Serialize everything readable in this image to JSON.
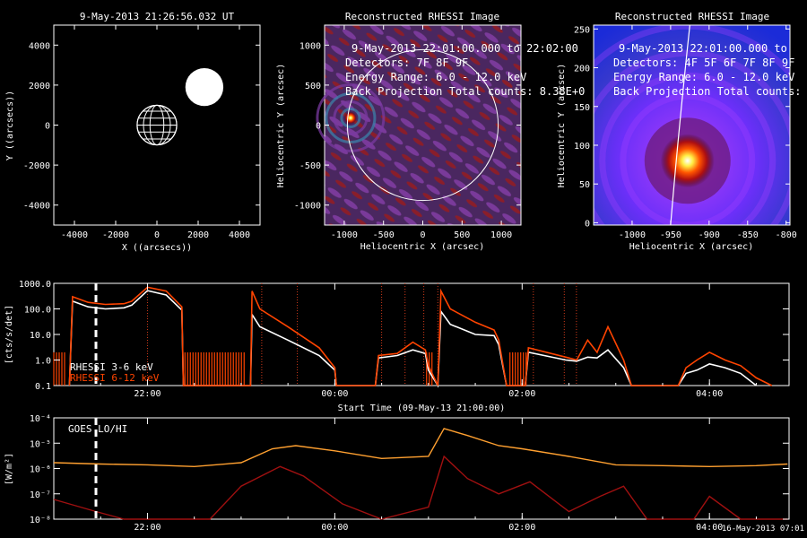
{
  "chart_data": [
    {
      "type": "scatter",
      "title": "9-May-2013 21:26:56.032 UT",
      "xlabel": "X ((arcsecs))",
      "ylabel": "Y ((arcsecs))",
      "xlim": [
        -5000,
        5000
      ],
      "ylim": [
        -5000,
        5000
      ],
      "xticks": [
        "-4000",
        "-2000",
        "0",
        "2000",
        "4000"
      ],
      "yticks": [
        "-4000",
        "-2000",
        "0",
        "2000",
        "4000"
      ],
      "objects": [
        {
          "kind": "earth-globe",
          "x": 0,
          "y": 0,
          "radius": 960
        },
        {
          "kind": "sun-disk",
          "x": 2300,
          "y": 1900,
          "radius": 920
        }
      ]
    },
    {
      "type": "heatmap",
      "title": "Reconstructed RHESSI Image",
      "xlabel": "Heliocentric X (arcsec)",
      "ylabel": "Heliocentric Y (arcsec)",
      "xlim": [
        -1250,
        1250
      ],
      "ylim": [
        -1250,
        1250
      ],
      "xticks": [
        "-1000",
        "-500",
        "0",
        "500",
        "1000"
      ],
      "yticks": [
        "-1000",
        "-500",
        "0",
        "500",
        "1000"
      ],
      "overlay": [
        "9-May-2013 22:01:00.000 to 22:02:00",
        "Detectors: 7F 8F 9F",
        "Energy Range: 6.0 - 12.0 keV",
        "Back Projection      Total counts: 8.38E+0"
      ],
      "source": {
        "x": -920,
        "y": 90
      },
      "solar_limb_radius": 960
    },
    {
      "type": "heatmap",
      "title": "Reconstructed RHESSI Image",
      "xlabel": "Heliocentric X (arcsec)",
      "ylabel": "Heliocentric Y (arcsec)",
      "xlim": [
        -1050,
        -795
      ],
      "ylim": [
        -3,
        255
      ],
      "xticks": [
        "-1000",
        "-950",
        "-900",
        "-850",
        "-800"
      ],
      "yticks": [
        "0",
        "50",
        "100",
        "150",
        "200",
        "250"
      ],
      "overlay": [
        "9-May-2013 22:01:00.000 to",
        "Detectors: 4F 5F 6F 7F 8F 9F",
        "Energy Range: 6.0 - 12.0 keV",
        "Back Projection     Total counts:"
      ],
      "source": {
        "x": -928,
        "y": 80
      }
    },
    {
      "type": "line",
      "title": "",
      "xlabel": "Start Time (09-May-13 21:00:00)",
      "ylabel": "[cts/s/det]",
      "log_y": true,
      "ylim": [
        0.1,
        1000
      ],
      "xlim_hours": [
        21.0,
        4.85
      ],
      "yticks": [
        "0.1",
        "1.0",
        "10.0",
        "100.0",
        "1000.0"
      ],
      "xticks": [
        "22:00",
        "00:00",
        "02:00",
        "04:00"
      ],
      "time_marker": "21:27",
      "legend": "lower-left",
      "series": [
        {
          "name": "RHESSI  3-6 keV",
          "color": "#ffffff",
          "points": [
            [
              "21:10",
              0.1
            ],
            [
              "21:12",
              200
            ],
            [
              "21:22",
              120
            ],
            [
              "21:33",
              100
            ],
            [
              "21:45",
              110
            ],
            [
              "21:50",
              140
            ],
            [
              "22:00",
              520
            ],
            [
              "22:12",
              350
            ],
            [
              "22:22",
              90
            ],
            [
              "22:23",
              0.1
            ],
            [
              "23:06",
              0.1
            ],
            [
              "23:07",
              60
            ],
            [
              "23:12",
              20
            ],
            [
              "23:30",
              6
            ],
            [
              "23:50",
              1.5
            ],
            [
              "00:00",
              0.4
            ],
            [
              "00:01",
              0.1
            ],
            [
              "00:26",
              0.1
            ],
            [
              "00:28",
              1.2
            ],
            [
              "00:40",
              1.5
            ],
            [
              "00:50",
              2.5
            ],
            [
              "00:58",
              1.8
            ],
            [
              "01:00",
              0.4
            ],
            [
              "01:06",
              0.1
            ],
            [
              "01:08",
              80
            ],
            [
              "01:14",
              25
            ],
            [
              "01:30",
              10
            ],
            [
              "01:42",
              9
            ],
            [
              "01:45",
              4
            ],
            [
              "01:50",
              0.1
            ],
            [
              "02:02",
              0.1
            ],
            [
              "02:04",
              2
            ],
            [
              "02:28",
              1
            ],
            [
              "02:35",
              0.9
            ],
            [
              "02:42",
              1.3
            ],
            [
              "02:48",
              1.2
            ],
            [
              "02:55",
              2.5
            ],
            [
              "03:05",
              0.5
            ],
            [
              "03:10",
              0.1
            ],
            [
              "03:40",
              0.1
            ],
            [
              "03:45",
              0.3
            ],
            [
              "03:52",
              0.4
            ],
            [
              "04:00",
              0.7
            ],
            [
              "04:10",
              0.5
            ],
            [
              "04:20",
              0.3
            ],
            [
              "04:30",
              0.1
            ]
          ]
        },
        {
          "name": "RHESSI  6-12 keV",
          "color": "#ff4400",
          "points": [
            [
              "21:10",
              0.1
            ],
            [
              "21:12",
              300
            ],
            [
              "21:22",
              180
            ],
            [
              "21:33",
              150
            ],
            [
              "21:45",
              160
            ],
            [
              "21:50",
              200
            ],
            [
              "22:00",
              700
            ],
            [
              "22:12",
              500
            ],
            [
              "22:22",
              120
            ],
            [
              "22:23",
              0.1
            ],
            [
              "23:06",
              0.1
            ],
            [
              "23:07",
              500
            ],
            [
              "23:12",
              100
            ],
            [
              "23:30",
              20
            ],
            [
              "23:50",
              3
            ],
            [
              "00:00",
              0.5
            ],
            [
              "00:01",
              0.1
            ],
            [
              "00:26",
              0.1
            ],
            [
              "00:28",
              1.5
            ],
            [
              "00:40",
              1.8
            ],
            [
              "00:50",
              5
            ],
            [
              "00:58",
              2.5
            ],
            [
              "01:00",
              0.6
            ],
            [
              "01:06",
              0.1
            ],
            [
              "01:08",
              500
            ],
            [
              "01:14",
              100
            ],
            [
              "01:30",
              30
            ],
            [
              "01:42",
              15
            ],
            [
              "01:45",
              6
            ],
            [
              "01:50",
              0.1
            ],
            [
              "02:02",
              0.1
            ],
            [
              "02:04",
              3
            ],
            [
              "02:28",
              1.3
            ],
            [
              "02:35",
              1
            ],
            [
              "02:42",
              6
            ],
            [
              "02:48",
              2
            ],
            [
              "02:55",
              20
            ],
            [
              "03:05",
              1
            ],
            [
              "03:10",
              0.1
            ],
            [
              "03:40",
              0.1
            ],
            [
              "03:45",
              0.5
            ],
            [
              "03:52",
              1
            ],
            [
              "04:00",
              2
            ],
            [
              "04:10",
              1
            ],
            [
              "04:20",
              0.6
            ],
            [
              "04:30",
              0.2
            ],
            [
              "04:40",
              0.1
            ]
          ]
        }
      ]
    },
    {
      "type": "line",
      "title": "",
      "xlabel": "Start Time (09-May-13 21:00:00)",
      "ylabel": "[W/m²]",
      "log_y": true,
      "ylim": [
        1e-08,
        0.0001
      ],
      "xlim_hours": [
        21.0,
        4.85
      ],
      "yticks": [
        "10⁻⁸",
        "10⁻⁷",
        "10⁻⁶",
        "10⁻⁵",
        "10⁻⁴"
      ],
      "xticks": [
        "22:00",
        "00:00",
        "02:00",
        "04:00"
      ],
      "time_marker": "21:27",
      "legend": "top-left",
      "legend_text": "GOES LO/HI",
      "footer": "16-May-2013 07:01",
      "series": [
        {
          "name": "GOES LO",
          "color": "#ffa030",
          "points": [
            [
              "21:00",
              1.7e-06
            ],
            [
              "21:30",
              1.5e-06
            ],
            [
              "22:00",
              1.4e-06
            ],
            [
              "22:30",
              1.2e-06
            ],
            [
              "23:00",
              1.7e-06
            ],
            [
              "23:20",
              6e-06
            ],
            [
              "23:35",
              8e-06
            ],
            [
              "00:00",
              5e-06
            ],
            [
              "00:30",
              2.5e-06
            ],
            [
              "01:00",
              3e-06
            ],
            [
              "01:10",
              3.8e-05
            ],
            [
              "01:25",
              2e-05
            ],
            [
              "01:45",
              8e-06
            ],
            [
              "02:00",
              6e-06
            ],
            [
              "02:30",
              3e-06
            ],
            [
              "03:00",
              1.4e-06
            ],
            [
              "03:30",
              1.3e-06
            ],
            [
              "04:00",
              1.2e-06
            ],
            [
              "04:30",
              1.3e-06
            ],
            [
              "04:50",
              1.5e-06
            ]
          ]
        },
        {
          "name": "GOES HI",
          "color": "#a01010",
          "points": [
            [
              "21:00",
              6e-08
            ],
            [
              "21:27",
              2e-08
            ],
            [
              "21:45",
              1e-08
            ],
            [
              "22:00",
              8e-09
            ],
            [
              "22:40",
              8e-09
            ],
            [
              "23:00",
              2e-07
            ],
            [
              "23:25",
              1.2e-06
            ],
            [
              "23:40",
              5e-07
            ],
            [
              "00:05",
              4e-08
            ],
            [
              "00:30",
              1e-08
            ],
            [
              "01:00",
              3e-08
            ],
            [
              "01:10",
              3e-06
            ],
            [
              "01:25",
              4e-07
            ],
            [
              "01:45",
              1e-07
            ],
            [
              "02:05",
              3e-07
            ],
            [
              "02:30",
              2e-08
            ],
            [
              "02:50",
              8e-08
            ],
            [
              "03:05",
              2e-07
            ],
            [
              "03:20",
              1e-08
            ],
            [
              "03:50",
              8e-09
            ],
            [
              "04:00",
              8e-08
            ],
            [
              "04:20",
              1e-08
            ],
            [
              "04:50",
              1e-08
            ]
          ]
        }
      ]
    }
  ]
}
